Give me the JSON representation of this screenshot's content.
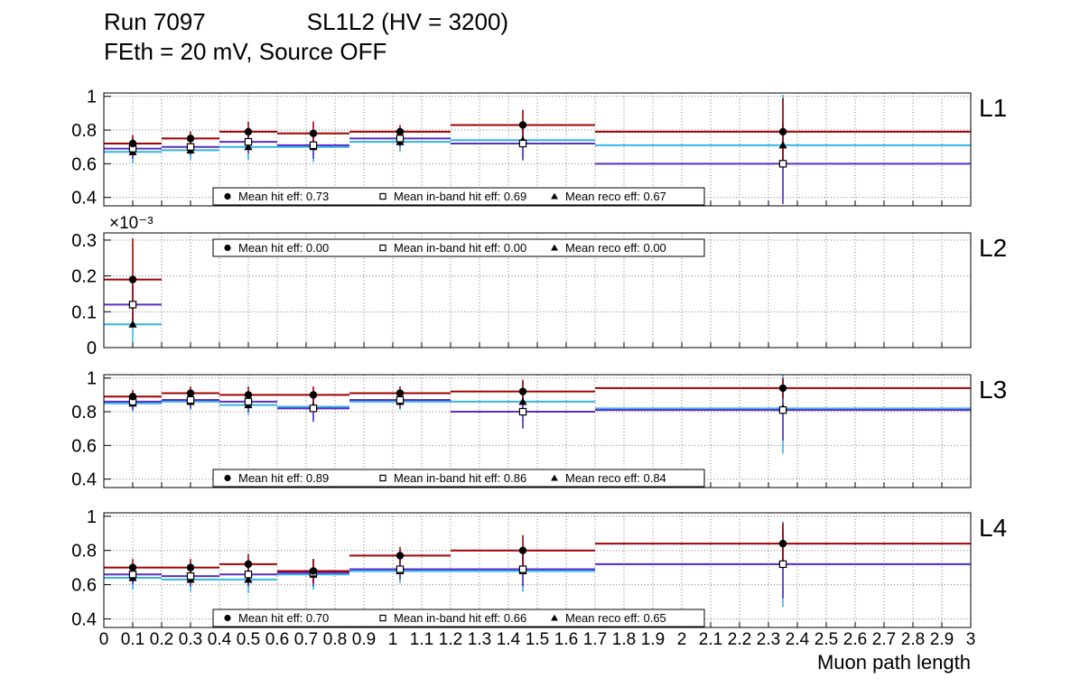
{
  "title": {
    "run": "Run 7097",
    "config": "SL1L2 (HV = 3200)",
    "conditions": "FEth = 20 mV, Source OFF"
  },
  "xlabel": "Muon path length",
  "colors": {
    "hit": "#a00000",
    "inband": "#5b2cc8",
    "reco": "#35b5e8",
    "marker": "#000000",
    "grid": "#777777",
    "frame": "#000000"
  },
  "axes": {
    "xlim": [
      0,
      3
    ],
    "x_tick_step": 0.1,
    "x_tick_labels": [
      "0",
      "0.1",
      "0.2",
      "0.3",
      "0.4",
      "0.5",
      "0.6",
      "0.7",
      "0.8",
      "0.9",
      "1",
      "1.1",
      "1.2",
      "1.3",
      "1.4",
      "1.5",
      "1.6",
      "1.7",
      "1.8",
      "1.9",
      "2",
      "2.1",
      "2.2",
      "2.3",
      "2.4",
      "2.5",
      "2.6",
      "2.7",
      "2.8",
      "2.9",
      "3"
    ],
    "bin_edges": [
      0,
      0.2,
      0.4,
      0.6,
      0.85,
      1.2,
      1.7,
      3
    ]
  },
  "chart_data": [
    {
      "type": "errorbar-steps",
      "label": "L1",
      "ylim": [
        0.35,
        1.02
      ],
      "yticks": [
        0.4,
        0.6,
        0.8,
        1
      ],
      "ytick_labels": [
        "0.4",
        "0.6",
        "0.8",
        "1"
      ],
      "y_scale_label": null,
      "legend_pos": "bottom",
      "legend": [
        {
          "marker": "circle",
          "text": "Mean hit  eff: 0.73"
        },
        {
          "marker": "square",
          "text": "Mean in-band hit eff: 0.69"
        },
        {
          "marker": "triangle",
          "text": "Mean reco eff: 0.67"
        }
      ],
      "series": [
        {
          "key": "hit",
          "name": "Mean hit eff",
          "marker": "circle",
          "values": [
            0.72,
            0.75,
            0.79,
            0.78,
            0.79,
            0.83,
            0.79
          ],
          "err": [
            0.05,
            0.04,
            0.06,
            0.07,
            0.04,
            0.09,
            0.2
          ]
        },
        {
          "key": "inband",
          "name": "Mean in-band hit eff",
          "marker": "square",
          "values": [
            0.69,
            0.7,
            0.73,
            0.71,
            0.75,
            0.72,
            0.6
          ],
          "err": [
            0.06,
            0.05,
            0.07,
            0.08,
            0.05,
            0.1,
            0.24
          ]
        },
        {
          "key": "reco",
          "name": "Mean reco eff",
          "marker": "triangle",
          "values": [
            0.67,
            0.68,
            0.7,
            0.7,
            0.73,
            0.74,
            0.71
          ],
          "err": [
            0.07,
            0.06,
            0.08,
            0.09,
            0.06,
            0.11,
            0.3
          ]
        }
      ]
    },
    {
      "type": "errorbar-steps",
      "label": "L2",
      "ylim": [
        0,
        0.32
      ],
      "yticks": [
        0,
        0.1,
        0.2,
        0.3
      ],
      "ytick_labels": [
        "0",
        "0.1",
        "0.2",
        "0.3"
      ],
      "y_scale_label": "×10⁻³",
      "legend_pos": "top",
      "legend": [
        {
          "marker": "circle",
          "text": "Mean hit  eff: 0.00"
        },
        {
          "marker": "square",
          "text": "Mean in-band hit eff: 0.00"
        },
        {
          "marker": "triangle",
          "text": "Mean reco eff: 0.00"
        }
      ],
      "series": [
        {
          "key": "hit",
          "name": "Mean hit eff",
          "marker": "circle",
          "values": [
            0.19,
            null,
            null,
            null,
            null,
            null,
            null
          ],
          "err": [
            0.115,
            0,
            0,
            0,
            0,
            0,
            0
          ]
        },
        {
          "key": "inband",
          "name": "Mean in-band hit eff",
          "marker": "square",
          "values": [
            0.12,
            null,
            null,
            null,
            null,
            null,
            null
          ],
          "err": [
            0.055,
            0,
            0,
            0,
            0,
            0,
            0
          ]
        },
        {
          "key": "reco",
          "name": "Mean reco eff",
          "marker": "triangle",
          "values": [
            0.065,
            null,
            null,
            null,
            null,
            null,
            null
          ],
          "err": [
            0.05,
            0,
            0,
            0,
            0,
            0,
            0
          ]
        }
      ]
    },
    {
      "type": "errorbar-steps",
      "label": "L3",
      "ylim": [
        0.35,
        1.02
      ],
      "yticks": [
        0.4,
        0.6,
        0.8,
        1
      ],
      "ytick_labels": [
        "0.4",
        "0.6",
        "0.8",
        "1"
      ],
      "y_scale_label": null,
      "legend_pos": "bottom",
      "legend": [
        {
          "marker": "circle",
          "text": "Mean hit  eff: 0.89"
        },
        {
          "marker": "square",
          "text": "Mean in-band hit eff: 0.86"
        },
        {
          "marker": "triangle",
          "text": "Mean reco eff: 0.84"
        }
      ],
      "series": [
        {
          "key": "hit",
          "name": "Mean hit eff",
          "marker": "circle",
          "values": [
            0.89,
            0.91,
            0.9,
            0.9,
            0.91,
            0.92,
            0.94
          ],
          "err": [
            0.04,
            0.04,
            0.05,
            0.05,
            0.04,
            0.07,
            0.06
          ]
        },
        {
          "key": "inband",
          "name": "Mean in-band hit eff",
          "marker": "square",
          "values": [
            0.86,
            0.87,
            0.86,
            0.82,
            0.87,
            0.8,
            0.81
          ],
          "err": [
            0.05,
            0.05,
            0.06,
            0.08,
            0.05,
            0.1,
            0.18
          ]
        },
        {
          "key": "reco",
          "name": "Mean reco eff",
          "marker": "triangle",
          "values": [
            0.85,
            0.86,
            0.84,
            0.83,
            0.86,
            0.86,
            0.82
          ],
          "err": [
            0.05,
            0.05,
            0.06,
            0.08,
            0.05,
            0.12,
            0.27
          ]
        }
      ]
    },
    {
      "type": "errorbar-steps",
      "label": "L4",
      "ylim": [
        0.35,
        1.02
      ],
      "yticks": [
        0.4,
        0.6,
        0.8,
        1
      ],
      "ytick_labels": [
        "0.4",
        "0.6",
        "0.8",
        "1"
      ],
      "y_scale_label": null,
      "legend_pos": "bottom",
      "legend": [
        {
          "marker": "circle",
          "text": "Mean hit  eff: 0.70"
        },
        {
          "marker": "square",
          "text": "Mean in-band hit eff: 0.66"
        },
        {
          "marker": "triangle",
          "text": "Mean reco eff: 0.65"
        }
      ],
      "series": [
        {
          "key": "hit",
          "name": "Mean hit eff",
          "marker": "circle",
          "values": [
            0.7,
            0.7,
            0.72,
            0.68,
            0.77,
            0.8,
            0.84
          ],
          "err": [
            0.05,
            0.05,
            0.06,
            0.07,
            0.05,
            0.09,
            0.12
          ]
        },
        {
          "key": "inband",
          "name": "Mean in-band hit eff",
          "marker": "square",
          "values": [
            0.66,
            0.65,
            0.66,
            0.67,
            0.69,
            0.69,
            0.72
          ],
          "err": [
            0.06,
            0.06,
            0.07,
            0.08,
            0.06,
            0.1,
            0.2
          ]
        },
        {
          "key": "reco",
          "name": "Mean reco eff",
          "marker": "triangle",
          "values": [
            0.64,
            0.63,
            0.63,
            0.66,
            0.68,
            0.68,
            0.72
          ],
          "err": [
            0.07,
            0.07,
            0.08,
            0.09,
            0.07,
            0.12,
            0.25
          ]
        }
      ]
    }
  ]
}
